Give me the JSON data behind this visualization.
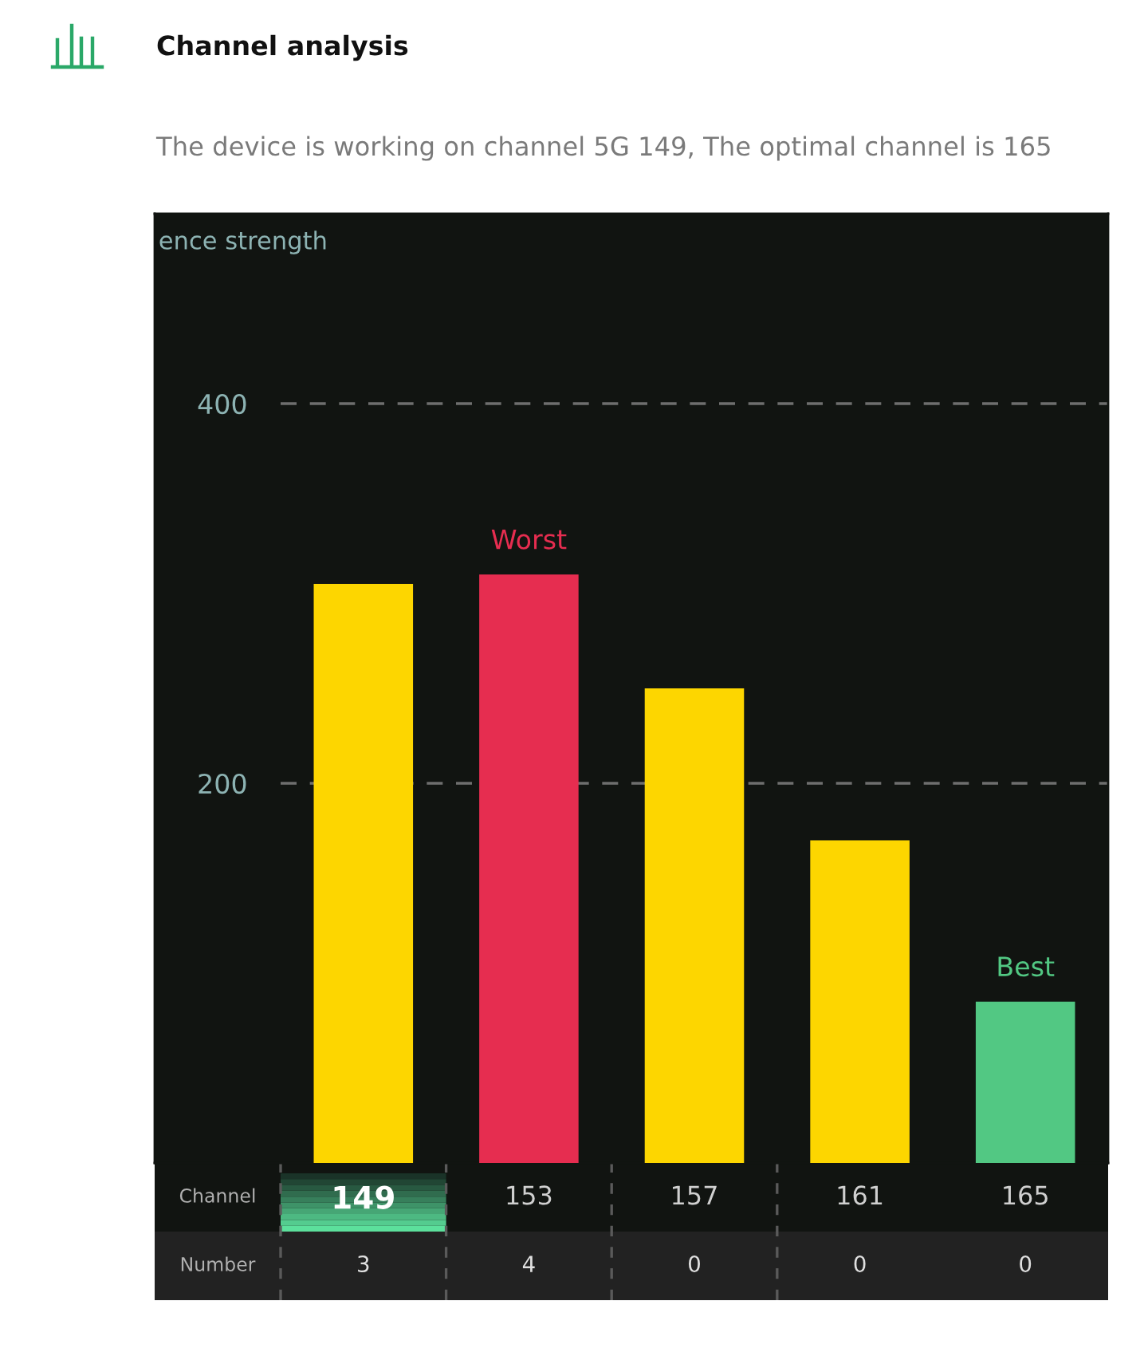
{
  "chart_data": {
    "type": "bar",
    "title": "Channel analysis",
    "subtitle": "The device is working on channel 5G 149, The optimal channel is 165",
    "xlabel": "Channel",
    "ylabel": "ence strength",
    "categories": [
      "149",
      "153",
      "157",
      "161",
      "165"
    ],
    "values": [
      305,
      310,
      250,
      170,
      85
    ],
    "colors": [
      "#fdd600",
      "#e62d50",
      "#fdd600",
      "#fdd600",
      "#52c883"
    ],
    "ylim": [
      0,
      500
    ],
    "yticks": [
      200,
      400
    ],
    "grid": "y",
    "annotations": [
      {
        "text": "Worst",
        "x": "153",
        "y": 310
      },
      {
        "text": "Best",
        "x": "165",
        "y": 85
      },
      "Number",
      "3",
      "4",
      "0",
      "0",
      "0"
    ]
  }
}
